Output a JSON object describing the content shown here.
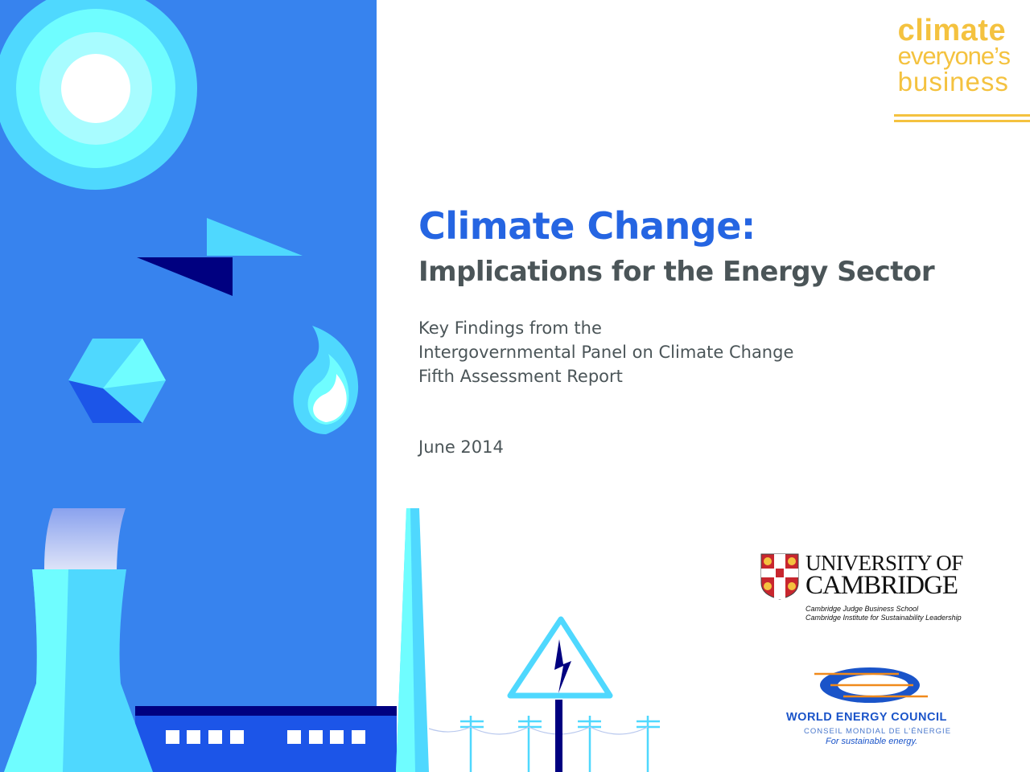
{
  "brand": {
    "line1": "climate",
    "line2": "everyone’s",
    "line3": "business",
    "color": "#F4C23F"
  },
  "document": {
    "title": "Climate Change:",
    "subtitle": "Implications for the Energy Sector",
    "key_findings": [
      "Key Findings from the",
      "Intergovernmental Panel on Climate Change",
      "Fifth Assessment Report"
    ],
    "date": "June 2014"
  },
  "cambridge": {
    "name_line1": "UNIVERSITY OF",
    "name_line2": "CAMBRIDGE",
    "schools": [
      "Cambridge Judge Business School",
      "Cambridge Institute for Sustainability Leadership"
    ]
  },
  "wec": {
    "name": "WORLD ENERGY COUNCIL",
    "name_fr": "CONSEIL MONDIAL DE L’ÉNERGIE",
    "tagline": "For sustainable energy."
  },
  "colors": {
    "panel": "#3783EE",
    "cyan": "#4FD8FE",
    "light_cyan": "#6FFDFF",
    "navy": "#000080",
    "building": "#1C55E8",
    "title": "#2565E2",
    "text": "#4B5558"
  }
}
